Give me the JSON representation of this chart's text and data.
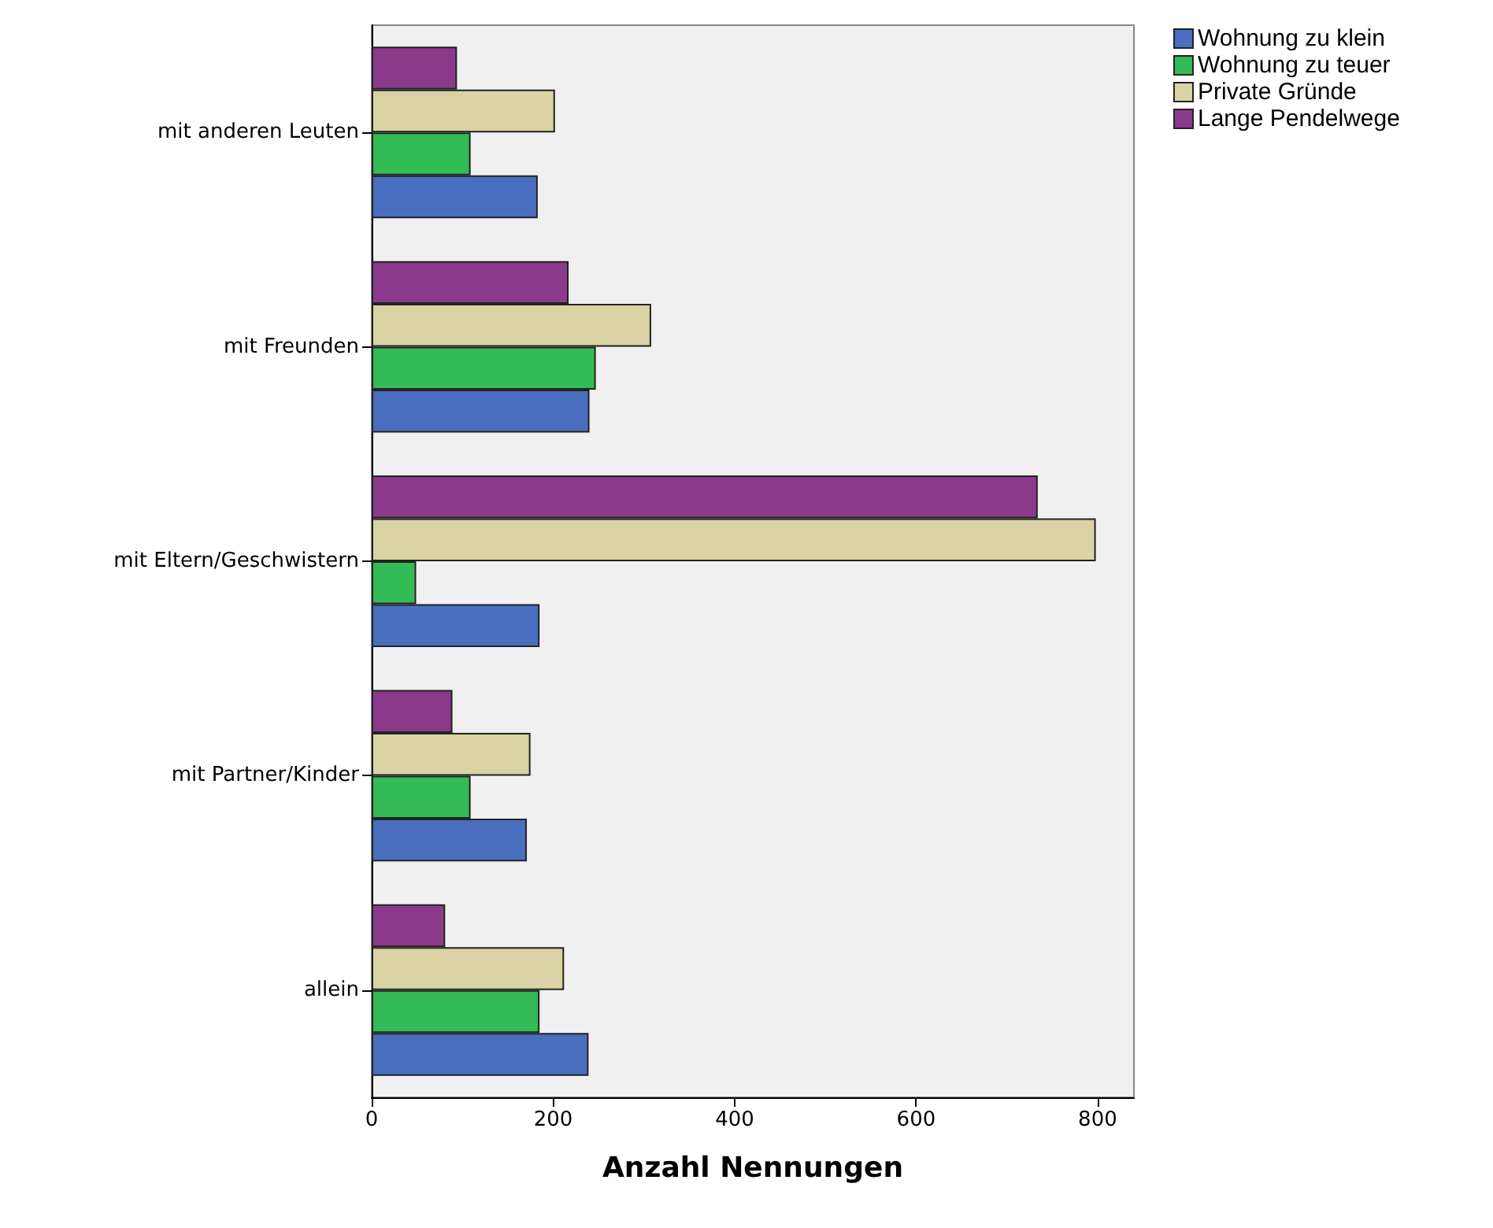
{
  "chart_data": {
    "type": "bar",
    "orientation": "horizontal",
    "xlabel": "Anzahl Nennungen",
    "categories": [
      "mit anderen Leuten",
      "mit Freunden",
      "mit Eltern/Geschwistern",
      "mit Partner/Kinder",
      "allein"
    ],
    "series": [
      {
        "name": "Wohnung zu klein",
        "color": "#4a6ebf",
        "values": [
          183,
          240,
          185,
          171,
          239
        ]
      },
      {
        "name": "Wohnung zu teuer",
        "color": "#33bb55",
        "values": [
          109,
          247,
          49,
          109,
          185
        ]
      },
      {
        "name": "Private Gründe",
        "color": "#d9d3a5",
        "values": [
          202,
          308,
          798,
          175,
          212
        ]
      },
      {
        "name": "Lange Pendelwege",
        "color": "#8b3a8b",
        "values": [
          94,
          217,
          734,
          89,
          81
        ]
      }
    ],
    "xlim": [
      0,
      840
    ],
    "xticks": [
      0,
      200,
      400,
      600,
      800
    ],
    "grid": false,
    "legend": "top right"
  }
}
